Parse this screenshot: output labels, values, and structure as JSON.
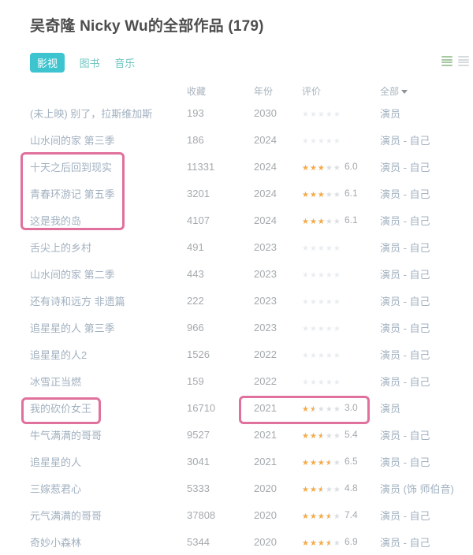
{
  "page": {
    "title": "吴奇隆 Nicky Wu的全部作品 (179)"
  },
  "tabs": [
    {
      "label": "影视",
      "active": true
    },
    {
      "label": "图书",
      "active": false
    },
    {
      "label": "音乐",
      "active": false
    }
  ],
  "view_icons": [
    {
      "name": "detail-list-view-icon",
      "active": true
    },
    {
      "name": "compact-list-view-icon",
      "active": false
    }
  ],
  "table": {
    "columns": {
      "collect": "收藏",
      "year": "年份",
      "rating": "评价",
      "filter": "全部"
    },
    "rows": [
      {
        "title": "(未上映) 别了，拉斯维加斯",
        "collect": "193",
        "year": "2030",
        "stars": 0,
        "score": "",
        "role": "演员"
      },
      {
        "title": "山水间的家 第三季",
        "collect": "186",
        "year": "2024",
        "stars": 0,
        "score": "",
        "role": "演员 - 自己"
      },
      {
        "title": "十天之后回到现实",
        "collect": "11331",
        "year": "2024",
        "stars": 3,
        "score": "6.0",
        "role": "演员 - 自己"
      },
      {
        "title": "青春环游记 第五季",
        "collect": "3201",
        "year": "2024",
        "stars": 3,
        "score": "6.1",
        "role": "演员 - 自己"
      },
      {
        "title": "这是我的岛",
        "collect": "4107",
        "year": "2024",
        "stars": 3,
        "score": "6.1",
        "role": "演员 - 自己"
      },
      {
        "title": "舌尖上的乡村",
        "collect": "491",
        "year": "2023",
        "stars": 0,
        "score": "",
        "role": "演员 - 自己"
      },
      {
        "title": "山水间的家 第二季",
        "collect": "443",
        "year": "2023",
        "stars": 0,
        "score": "",
        "role": "演员 - 自己"
      },
      {
        "title": "还有诗和远方 非遗篇",
        "collect": "222",
        "year": "2023",
        "stars": 0,
        "score": "",
        "role": "演员 - 自己"
      },
      {
        "title": "追星星的人 第三季",
        "collect": "966",
        "year": "2023",
        "stars": 0,
        "score": "",
        "role": "演员 - 自己"
      },
      {
        "title": "追星星的人2",
        "collect": "1526",
        "year": "2022",
        "stars": 0,
        "score": "",
        "role": "演员 - 自己"
      },
      {
        "title": "冰雪正当燃",
        "collect": "159",
        "year": "2022",
        "stars": 0,
        "score": "",
        "role": "演员 - 自己"
      },
      {
        "title": "我的砍价女王",
        "collect": "16710",
        "year": "2021",
        "stars": 1.5,
        "score": "3.0",
        "role": "演员"
      },
      {
        "title": "牛气满满的哥哥",
        "collect": "9527",
        "year": "2021",
        "stars": 2.5,
        "score": "5.4",
        "role": "演员 - 自己"
      },
      {
        "title": "追星星的人",
        "collect": "3041",
        "year": "2021",
        "stars": 3.5,
        "score": "6.5",
        "role": "演员 - 自己"
      },
      {
        "title": "三嫁惹君心",
        "collect": "5333",
        "year": "2020",
        "stars": 2.5,
        "score": "4.8",
        "role": "演员 (饰 师伯音)"
      },
      {
        "title": "元气满满的哥哥",
        "collect": "37808",
        "year": "2020",
        "stars": 3.5,
        "score": "7.4",
        "role": "演员 - 自己"
      },
      {
        "title": "奇妙小森林",
        "collect": "5344",
        "year": "2020",
        "stars": 3.5,
        "score": "6.9",
        "role": "演员 - 自己"
      }
    ]
  },
  "colors": {
    "accent_teal": "#3ec4cf",
    "star_orange": "#f5ab48",
    "star_grey": "#dcdfe2",
    "annotation_pink": "#e0719d",
    "link_blue_grey": "#a2b1c0",
    "text_grey": "#a5aaae"
  },
  "stars_glyphs": "★★★★★"
}
